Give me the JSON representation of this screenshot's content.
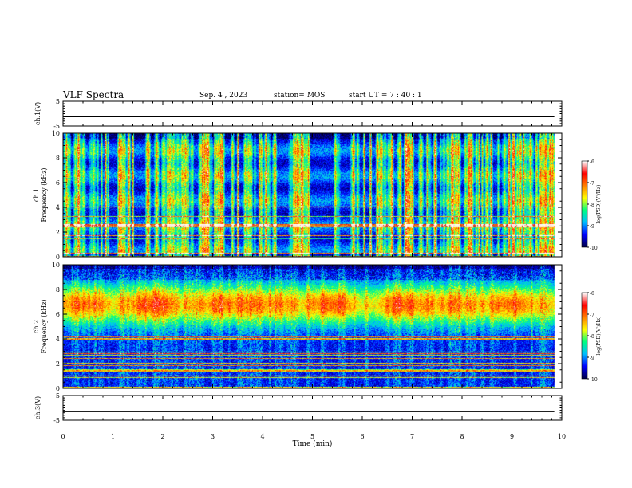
{
  "header": {
    "title": "VLF Spectra",
    "date": "Sep. 4 , 2023",
    "station": "station= MOS",
    "start_ut": "start UT = 7 : 40 : 1"
  },
  "chart_data": [
    {
      "type": "line",
      "name": "ch1-voltage",
      "ylabel": "ch.1(V)",
      "ylim": [
        -5,
        5
      ],
      "yticks": [
        "5",
        "-5"
      ],
      "x": [
        0,
        9.85
      ],
      "y": [
        -1.2,
        -1.2
      ]
    },
    {
      "type": "heatmap",
      "name": "ch1-spectrogram",
      "ylabel_line1": "ch.1",
      "ylabel_line2": "Frequency (kHz)",
      "ylim": [
        0,
        10
      ],
      "yticks": [
        "0",
        "2",
        "4",
        "6",
        "8",
        "10"
      ],
      "xlim": [
        0,
        9.85
      ],
      "colorbar": {
        "label": "log(PSD)(V²/Hz)",
        "ticks": [
          "-6",
          "-7",
          "-8",
          "-9",
          "-10"
        ],
        "range": [
          -10,
          -6
        ]
      }
    },
    {
      "type": "heatmap",
      "name": "ch2-spectrogram",
      "ylabel_line1": "ch.2",
      "ylabel_line2": "Frequency (kHz)",
      "ylim": [
        0,
        10
      ],
      "yticks": [
        "0",
        "2",
        "4",
        "6",
        "8",
        "10"
      ],
      "xlim": [
        0,
        9.85
      ],
      "colorbar": {
        "label": "log(PSD)(V²/Hz)",
        "ticks": [
          "-6",
          "-7",
          "-8",
          "-9",
          "-10"
        ],
        "range": [
          -10,
          -6
        ]
      }
    },
    {
      "type": "line",
      "name": "ch3-voltage",
      "ylabel": "ch.3(V)",
      "ylim": [
        -5,
        5
      ],
      "yticks": [
        "5",
        "-5"
      ],
      "x": [
        0,
        9.85
      ],
      "y": [
        -1.5,
        -1.5
      ]
    }
  ],
  "xaxis": {
    "label": "Time (min)",
    "ticks": [
      "0",
      "1",
      "2",
      "3",
      "4",
      "5",
      "6",
      "7",
      "8",
      "9",
      "10"
    ],
    "range": [
      0,
      10
    ]
  },
  "colors": {
    "colormap": [
      "#00004a",
      "#0000ff",
      "#00bfff",
      "#00ff80",
      "#ffff00",
      "#ff8000",
      "#ff0000",
      "#ffffff"
    ]
  }
}
